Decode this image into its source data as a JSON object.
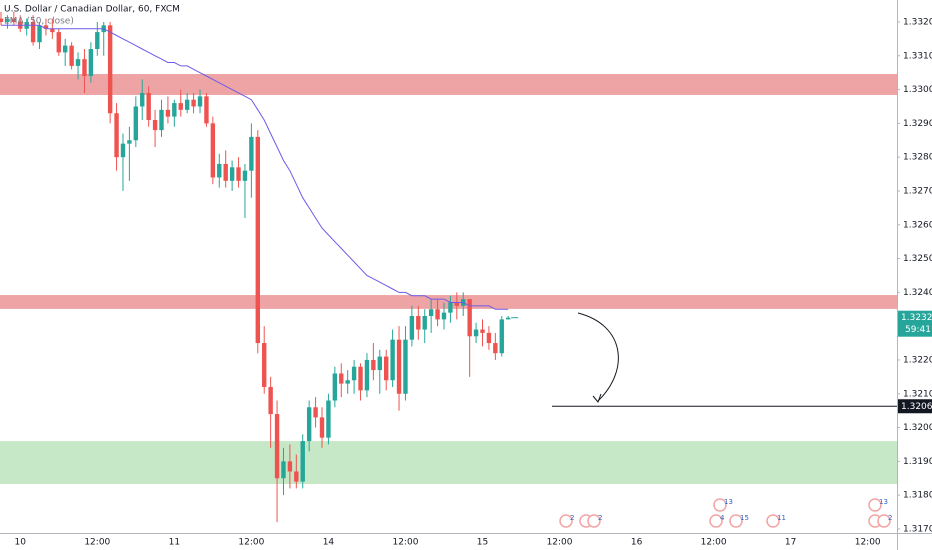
{
  "chart_data": {
    "type": "candlestick",
    "title": "U.S. Dollar / Canadian Dollar, 60, FXCM",
    "up_color": "#26a69a",
    "down_color": "#ef5350",
    "categories": [
      null,
      null,
      null,
      "10",
      null,
      null,
      null,
      null,
      null,
      null,
      null,
      null,
      null,
      null,
      null,
      "12:00",
      null,
      null,
      null,
      null,
      null,
      null,
      null,
      null,
      null,
      null,
      null,
      "11",
      null,
      null,
      null,
      null,
      null,
      null,
      null,
      null,
      null,
      null,
      null,
      "12:00",
      null,
      null,
      null,
      null,
      null,
      null,
      null,
      null,
      null,
      null,
      null,
      "14",
      null,
      null,
      null,
      null,
      null,
      null,
      null,
      null,
      null,
      null,
      null,
      "12:00",
      null,
      null,
      null,
      null,
      null,
      null,
      null,
      null,
      null,
      null,
      null,
      "15",
      null,
      null,
      null,
      null,
      null,
      null,
      null,
      null,
      null,
      null,
      null,
      "12:00",
      null,
      null,
      null,
      null,
      null,
      null,
      null,
      null,
      null,
      null,
      null,
      "16",
      null,
      null,
      null,
      null,
      null,
      null,
      null,
      null,
      null,
      null,
      null,
      "12:00",
      null,
      null,
      null,
      null,
      null,
      null,
      null,
      null,
      null,
      null,
      null,
      "17",
      null,
      null,
      null,
      null,
      null,
      null,
      null,
      null,
      null,
      null,
      null,
      "12:00",
      null,
      null,
      null,
      null
    ],
    "open": [
      1.3321,
      1.332,
      1.3321,
      1.332,
      1.3318,
      1.332,
      1.3314,
      1.3319,
      1.3318,
      1.3317,
      1.3311,
      1.3313,
      1.3307,
      1.3309,
      1.3304,
      1.3312,
      1.3317,
      1.3319,
      1.3293,
      1.328,
      1.3284,
      1.3285,
      1.3295,
      1.3299,
      1.3291,
      1.3288,
      1.3294,
      1.3292,
      1.3296,
      1.3294,
      1.3297,
      1.3295,
      1.3298,
      1.329,
      1.3274,
      1.3278,
      1.3273,
      1.3277,
      1.3273,
      1.3276,
      1.3286,
      1.3225,
      1.3212,
      1.3204,
      1.3185,
      1.319,
      1.3187,
      1.3184,
      1.3196,
      1.3206,
      1.3203,
      1.3197,
      1.3208,
      1.3216,
      1.3213,
      1.3214,
      1.3218,
      1.3211,
      1.322,
      1.3217,
      1.3221,
      1.3214,
      1.3226,
      1.321,
      1.3226,
      1.3233,
      1.3229,
      1.3233,
      1.3235,
      1.3232,
      1.3234,
      1.3237,
      1.3236,
      1.3238,
      1.3227,
      1.3229,
      1.3228,
      1.3225,
      1.3222,
      1.3232,
      null,
      null,
      null,
      null,
      null,
      null,
      null,
      null,
      null,
      null,
      null,
      null,
      null,
      null,
      null,
      null,
      null,
      null,
      null,
      null,
      null,
      null,
      null,
      null,
      null,
      null,
      null,
      null,
      null,
      null,
      null,
      null,
      null,
      null,
      null,
      null,
      null,
      null,
      null,
      null,
      null,
      null,
      null,
      null,
      null,
      null,
      null,
      null,
      null,
      null,
      null,
      null,
      null,
      null,
      null,
      null,
      null,
      null,
      null,
      null
    ],
    "high": [
      1.3323,
      1.3322,
      1.3323,
      1.3322,
      1.3321,
      1.3322,
      1.332,
      1.3321,
      1.3321,
      1.3318,
      1.3315,
      1.3314,
      1.3311,
      1.3312,
      1.3314,
      1.332,
      1.332,
      1.332,
      1.3296,
      1.3287,
      1.3289,
      1.3298,
      1.3303,
      1.3301,
      1.3294,
      1.3297,
      1.3298,
      1.3297,
      1.33,
      1.3299,
      1.3299,
      1.33,
      1.3299,
      1.3292,
      1.3281,
      1.3282,
      1.3279,
      1.328,
      1.3278,
      1.329,
      1.3288,
      1.323,
      1.3215,
      1.3208,
      1.3194,
      1.3195,
      1.3192,
      1.3198,
      1.3208,
      1.3209,
      1.3206,
      1.321,
      1.3218,
      1.3219,
      1.3217,
      1.322,
      1.3219,
      1.3222,
      1.3225,
      1.3223,
      1.3223,
      1.3229,
      1.323,
      1.323,
      1.3236,
      1.3236,
      1.3235,
      1.3238,
      1.3238,
      1.3237,
      1.3239,
      1.324,
      1.324,
      1.3238,
      1.3231,
      1.3232,
      1.323,
      1.3228,
      1.3233,
      1.3233,
      null,
      null,
      null,
      null,
      null,
      null,
      null,
      null,
      null,
      null,
      null,
      null,
      null,
      null,
      null,
      null,
      null,
      null,
      null,
      null,
      null,
      null,
      null,
      null,
      null,
      null,
      null,
      null,
      null,
      null,
      null,
      null,
      null,
      null,
      null,
      null,
      null,
      null,
      null,
      null,
      null,
      null,
      null,
      null,
      null,
      null,
      null,
      null,
      null,
      null,
      null,
      null,
      null,
      null,
      null,
      null,
      null,
      null,
      null,
      null
    ],
    "low": [
      1.3319,
      1.3318,
      1.3319,
      1.3317,
      1.3316,
      1.3313,
      1.3312,
      1.3316,
      1.3315,
      1.331,
      1.3307,
      1.3306,
      1.3303,
      1.3299,
      1.3302,
      1.331,
      1.331,
      1.329,
      1.3276,
      1.327,
      1.3273,
      1.3283,
      1.3291,
      1.3289,
      1.3283,
      1.3286,
      1.329,
      1.3289,
      1.3292,
      1.3293,
      1.3293,
      1.3293,
      1.3289,
      1.3272,
      1.3271,
      1.3271,
      1.327,
      1.3271,
      1.3262,
      1.3268,
      1.3222,
      1.321,
      1.3194,
      1.3172,
      1.318,
      1.3182,
      1.3182,
      1.3182,
      1.3193,
      1.32,
      1.3194,
      1.3195,
      1.3206,
      1.3209,
      1.321,
      1.321,
      1.3208,
      1.3209,
      1.3214,
      1.321,
      1.3211,
      1.3212,
      1.3205,
      1.3208,
      1.3224,
      1.3226,
      1.3225,
      1.3228,
      1.323,
      1.3229,
      1.3231,
      1.3232,
      1.3233,
      1.3215,
      1.3225,
      1.3224,
      1.3223,
      1.322,
      1.3221,
      1.3232,
      null,
      null,
      null,
      null,
      null,
      null,
      null,
      null,
      null,
      null,
      null,
      null,
      null,
      null,
      null,
      null,
      null,
      null,
      null,
      null,
      null,
      null,
      null,
      null,
      null,
      null,
      null,
      null,
      null,
      null,
      null,
      null,
      null,
      null,
      null,
      null,
      null,
      null,
      null,
      null,
      null,
      null,
      null,
      null,
      null,
      null,
      null,
      null,
      null,
      null,
      null,
      null,
      null,
      null,
      null,
      null,
      null,
      null,
      null,
      null
    ],
    "close": [
      1.332,
      1.3321,
      1.332,
      1.3318,
      1.332,
      1.3314,
      1.3319,
      1.3318,
      1.3317,
      1.3311,
      1.3313,
      1.3307,
      1.3309,
      1.3304,
      1.3312,
      1.3317,
      1.3319,
      1.3293,
      1.328,
      1.3284,
      1.3285,
      1.3295,
      1.3299,
      1.3291,
      1.3288,
      1.3294,
      1.3292,
      1.3296,
      1.3294,
      1.3297,
      1.3295,
      1.3298,
      1.329,
      1.3274,
      1.3278,
      1.3273,
      1.3277,
      1.3273,
      1.3276,
      1.3286,
      1.3225,
      1.3212,
      1.3204,
      1.3185,
      1.319,
      1.3187,
      1.3184,
      1.3196,
      1.3206,
      1.3203,
      1.3197,
      1.3208,
      1.3216,
      1.3213,
      1.3214,
      1.3218,
      1.3211,
      1.322,
      1.3217,
      1.3221,
      1.3214,
      1.3226,
      1.321,
      1.3226,
      1.3233,
      1.3229,
      1.3233,
      1.3235,
      1.3232,
      1.3234,
      1.3237,
      1.3236,
      1.3238,
      1.3227,
      1.3229,
      1.3228,
      1.3225,
      1.3222,
      1.3232,
      1.32325,
      null,
      null,
      null,
      null,
      null,
      null,
      null,
      null,
      null,
      null,
      null,
      null,
      null,
      null,
      null,
      null,
      null,
      null,
      null,
      null,
      null,
      null,
      null,
      null,
      null,
      null,
      null,
      null,
      null,
      null,
      null,
      null,
      null,
      null,
      null,
      null,
      null,
      null,
      null,
      null,
      null,
      null,
      null,
      null,
      null,
      null,
      null,
      null,
      null,
      null,
      null,
      null,
      null,
      null,
      null,
      null,
      null,
      null,
      null,
      null
    ],
    "overlays": [
      {
        "name": "EMA (50, close)",
        "color": "#6c5ce7",
        "values": [
          1.3319,
          1.3319,
          1.3319,
          1.3319,
          1.3319,
          1.3319,
          1.3319,
          1.3318,
          1.3318,
          1.3318,
          1.3318,
          1.3318,
          1.3318,
          1.3318,
          1.3318,
          1.3318,
          1.3318,
          1.3317,
          1.3316,
          1.3315,
          1.3314,
          1.3313,
          1.3312,
          1.3311,
          1.331,
          1.3309,
          1.3308,
          1.3308,
          1.3307,
          1.3307,
          1.3306,
          1.3305,
          1.3304,
          1.3303,
          1.3302,
          1.3301,
          1.33,
          1.3299,
          1.3298,
          1.3297,
          1.3294,
          1.3291,
          1.3287,
          1.3283,
          1.3279,
          1.3276,
          1.3272,
          1.3268,
          1.3265,
          1.3262,
          1.3259,
          1.3257,
          1.3255,
          1.3253,
          1.3251,
          1.3249,
          1.3247,
          1.3245,
          1.3244,
          1.3243,
          1.3242,
          1.3241,
          1.324,
          1.324,
          1.3239,
          1.3239,
          1.3239,
          1.3238,
          1.3238,
          1.3238,
          1.3237,
          1.3237,
          1.3237,
          1.3236,
          1.3236,
          1.3236,
          1.3236,
          1.3235,
          1.3235,
          1.3235,
          null,
          null,
          null,
          null,
          null,
          null,
          null,
          null,
          null,
          null,
          null,
          null,
          null,
          null,
          null,
          null,
          null,
          null,
          null,
          null,
          null,
          null,
          null,
          null,
          null,
          null,
          null,
          null,
          null,
          null,
          null,
          null,
          null,
          null,
          null,
          null,
          null,
          null,
          null,
          null,
          null,
          null,
          null,
          null,
          null,
          null,
          null,
          null,
          null,
          null,
          null,
          null,
          null,
          null,
          null,
          null,
          null,
          null,
          null,
          null
        ]
      }
    ],
    "zones": [
      {
        "from": 1.32984,
        "to": 1.33046,
        "color": "#eea4a4"
      },
      {
        "from": 1.32351,
        "to": 1.32392,
        "color": "#eea4a4"
      },
      {
        "from": 1.31833,
        "to": 1.3196,
        "color": "#c6e8c6"
      }
    ],
    "hline": 1.32063,
    "countdown": "59:41",
    "events": [
      "2",
      "3",
      "2",
      "13",
      "4",
      "15",
      "11",
      "13",
      "4",
      "2"
    ],
    "ylim": [
      1.31688,
      1.33265
    ],
    "yticks": [
      {
        "value": 1.317,
        "label": "1.31700"
      },
      {
        "value": 1.318,
        "label": "1.31800"
      },
      {
        "value": 1.319,
        "label": "1.31900"
      },
      {
        "value": 1.32,
        "label": "1.32000"
      },
      {
        "value": 1.321,
        "label": "1.32100"
      },
      {
        "value": 1.322,
        "label": "1.32200"
      },
      {
        "value": 1.324,
        "label": "1.32400"
      },
      {
        "value": 1.325,
        "label": "1.32500"
      },
      {
        "value": 1.326,
        "label": "1.32600"
      },
      {
        "value": 1.327,
        "label": "1.32700"
      },
      {
        "value": 1.328,
        "label": "1.32800"
      },
      {
        "value": 1.329,
        "label": "1.32900"
      },
      {
        "value": 1.33,
        "label": "1.33000"
      },
      {
        "value": 1.331,
        "label": "1.33100"
      },
      {
        "value": 1.332,
        "label": "1.33200"
      }
    ],
    "grid": false
  }
}
